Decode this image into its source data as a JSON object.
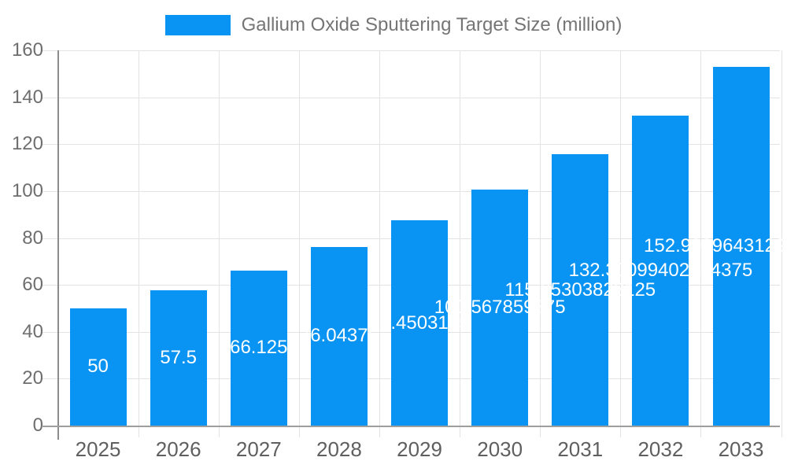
{
  "chart_data": {
    "type": "bar",
    "title": "Gallium Oxide Sputtering Target Size (million)",
    "categories": [
      "2025",
      "2026",
      "2027",
      "2028",
      "2029",
      "2030",
      "2031",
      "2032",
      "2033"
    ],
    "values": [
      50,
      57.5,
      66.125,
      76.04375,
      87.4503125,
      100.567859375,
      115.65303828125,
      132.30099402734376,
      152.99996431295313
    ],
    "bar_labels": [
      "50",
      "57.5",
      "66.125",
      "76.04375",
      "87.4503125",
      "100.567859375",
      "115.65303828125",
      "132.30099402734375",
      "152.999964312953125"
    ],
    "xlabel": "",
    "ylabel": "",
    "ylim": [
      0,
      160
    ],
    "yticks": [
      0,
      20,
      40,
      60,
      80,
      100,
      120,
      140,
      160
    ],
    "grid": true,
    "legend_position": "top",
    "bar_label_position": "center"
  },
  "legend": {
    "label": "Gallium Oxide Sputtering Target Size (million)"
  },
  "colors": {
    "bar": "#0993f2",
    "bar_label_text": "#ffffff",
    "gridline": "#e3e3e3",
    "axis_spine": "#8c8c8c",
    "axis_baseline": "#9e9e9e",
    "tick_label": "#6e6e6e",
    "x_tick_label": "#5f5f5f",
    "title_text": "#757575"
  }
}
